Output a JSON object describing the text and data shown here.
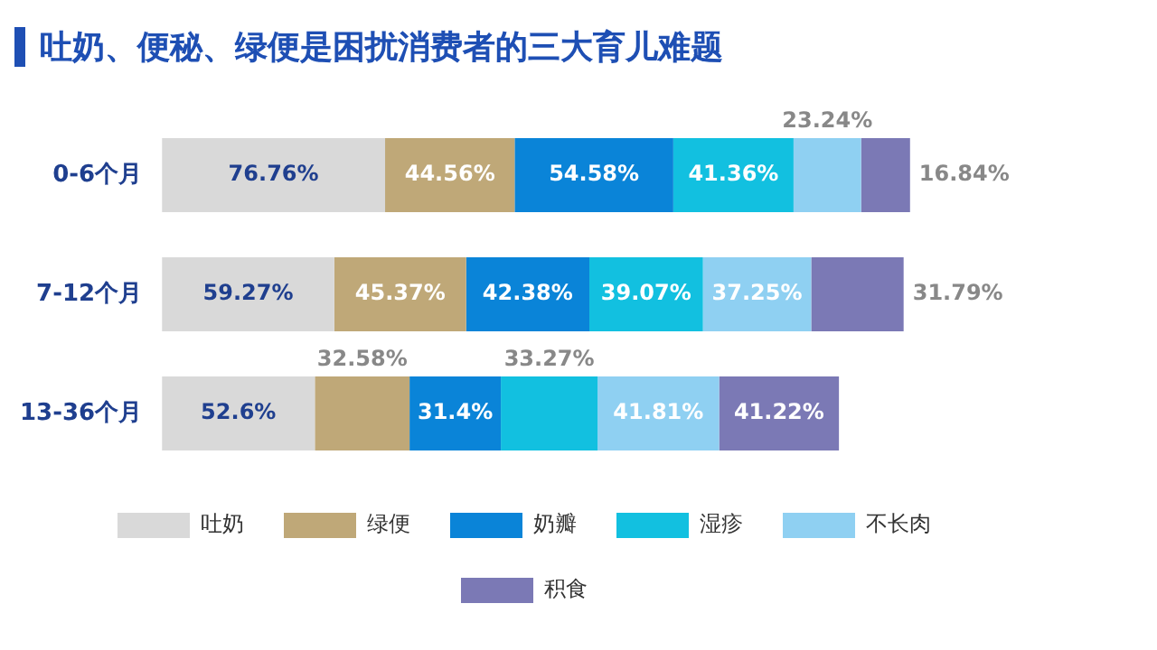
{
  "chart_data": {
    "type": "bar",
    "orientation": "horizontal",
    "stacked": true,
    "title": "吐奶、便秘、绿便是困扰消费者的三大育儿难题",
    "categories": [
      "0-6个月",
      "7-12个月",
      "13-36个月"
    ],
    "legend": "bottom",
    "grid": false,
    "series": [
      {
        "name": "吐奶",
        "color": "#d9d9d9",
        "values": [
          76.76,
          59.27,
          52.6
        ],
        "value_labels": [
          "76.76%",
          "59.27%",
          "52.6%"
        ]
      },
      {
        "name": "绿便",
        "color": "#bfa878",
        "values": [
          44.56,
          45.37,
          32.58
        ],
        "value_labels": [
          "44.56%",
          "45.37%",
          "32.58%"
        ]
      },
      {
        "name": "奶瓣",
        "color": "#0a84d8",
        "values": [
          54.58,
          42.38,
          31.4
        ],
        "value_labels": [
          "54.58%",
          "42.38%",
          "31.4%"
        ]
      },
      {
        "name": "湿疹",
        "color": "#12c0e0",
        "values": [
          41.36,
          39.07,
          33.27
        ],
        "value_labels": [
          "41.36%",
          "39.07%",
          "33.27%"
        ]
      },
      {
        "name": "不长肉",
        "color": "#8fd0f2",
        "values": [
          23.24,
          37.25,
          41.81
        ],
        "value_labels": [
          "23.24%",
          "37.25%",
          "41.81%"
        ]
      },
      {
        "name": "积食",
        "color": "#7b79b5",
        "values": [
          16.84,
          31.79,
          41.22
        ],
        "value_labels": [
          "16.84%",
          "31.79%",
          "41.22%"
        ]
      }
    ]
  }
}
